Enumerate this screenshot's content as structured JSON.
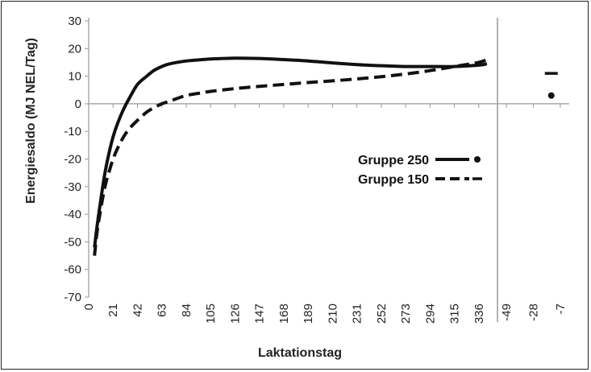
{
  "chart_data": {
    "type": "line",
    "title": "",
    "xlabel": "Laktationstag",
    "ylabel": "Energiesaldo (MJ NEL/Tag)",
    "ylim": [
      -70,
      30
    ],
    "yticks": [
      30,
      20,
      10,
      0,
      -10,
      -20,
      -30,
      -40,
      -50,
      -60,
      -70
    ],
    "xlim_lactation": [
      0,
      350
    ],
    "xticks_lactation": [
      0,
      21,
      42,
      63,
      84,
      105,
      126,
      147,
      168,
      189,
      210,
      231,
      252,
      273,
      294,
      315,
      336
    ],
    "xlim_dry": [
      -56,
      0
    ],
    "xticks_dry": [
      -49,
      -28,
      -7
    ],
    "grid": false,
    "legend_position": "center-right",
    "series": [
      {
        "name": "Gruppe 250",
        "style": "solid",
        "color": "#111111",
        "x": [
          5,
          7,
          10,
          14,
          18,
          21,
          25,
          30,
          35,
          42,
          50,
          56,
          63,
          70,
          84,
          98,
          105,
          126,
          147,
          168,
          189,
          210,
          231,
          252,
          273,
          294,
          315,
          336,
          343
        ],
        "y": [
          -52,
          -45,
          -36,
          -25,
          -17,
          -12,
          -7,
          -2,
          2,
          7,
          10,
          12,
          13.5,
          14.5,
          15.5,
          16,
          16.2,
          16.5,
          16.4,
          16,
          15.5,
          14.8,
          14.2,
          13.8,
          13.5,
          13.5,
          13.5,
          14,
          14.5
        ],
        "dry_period": {
          "x": -14,
          "y": 3
        }
      },
      {
        "name": "Gruppe 150",
        "style": "dashed",
        "color": "#111111",
        "x": [
          5,
          7,
          10,
          14,
          18,
          21,
          25,
          30,
          35,
          42,
          50,
          56,
          63,
          70,
          84,
          98,
          105,
          126,
          147,
          168,
          189,
          210,
          231,
          252,
          273,
          294,
          315,
          336,
          343
        ],
        "y": [
          -55,
          -47,
          -39,
          -30,
          -24,
          -20,
          -16,
          -12,
          -9,
          -6,
          -3,
          -1.5,
          0,
          1,
          3,
          4,
          4.5,
          5.5,
          6.3,
          7,
          7.7,
          8.3,
          9,
          9.8,
          10.8,
          12,
          13.5,
          15,
          16
        ],
        "dry_period": {
          "x": -14,
          "y": 11
        }
      }
    ]
  }
}
